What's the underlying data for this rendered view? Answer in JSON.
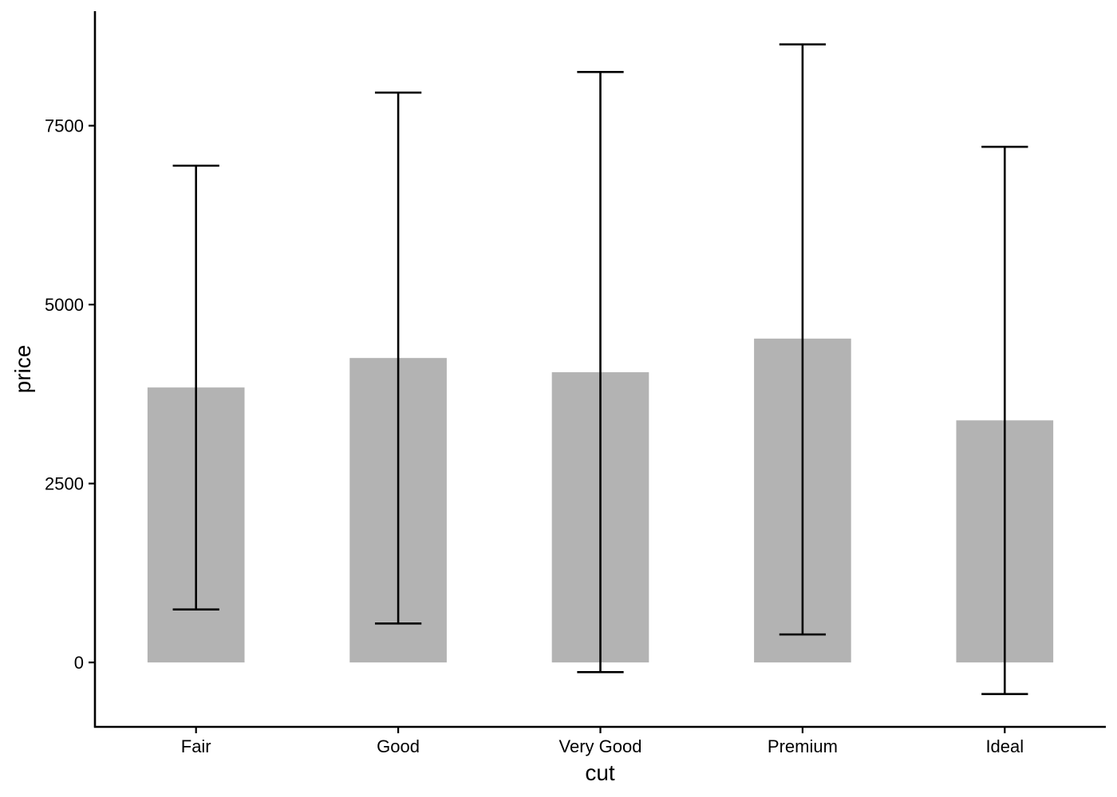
{
  "chart_data": {
    "type": "bar",
    "title": "",
    "xlabel": "cut",
    "ylabel": "price",
    "categories": [
      "Fair",
      "Good",
      "Very Good",
      "Premium",
      "Ideal"
    ],
    "values": [
      3842,
      4254,
      4055,
      4525,
      3383
    ],
    "error_low": [
      741,
      544,
      -135,
      391,
      -441
    ],
    "error_high": [
      6941,
      7962,
      8250,
      8636,
      7205
    ],
    "ylim": [
      -900,
      9100
    ],
    "yticks": [
      0,
      2500,
      5000,
      7500
    ],
    "ytick_labels": [
      "0",
      "2500",
      "5000",
      "7500"
    ],
    "grid": false,
    "bar_color": "#b3b3b3",
    "error_color": "#000000"
  }
}
